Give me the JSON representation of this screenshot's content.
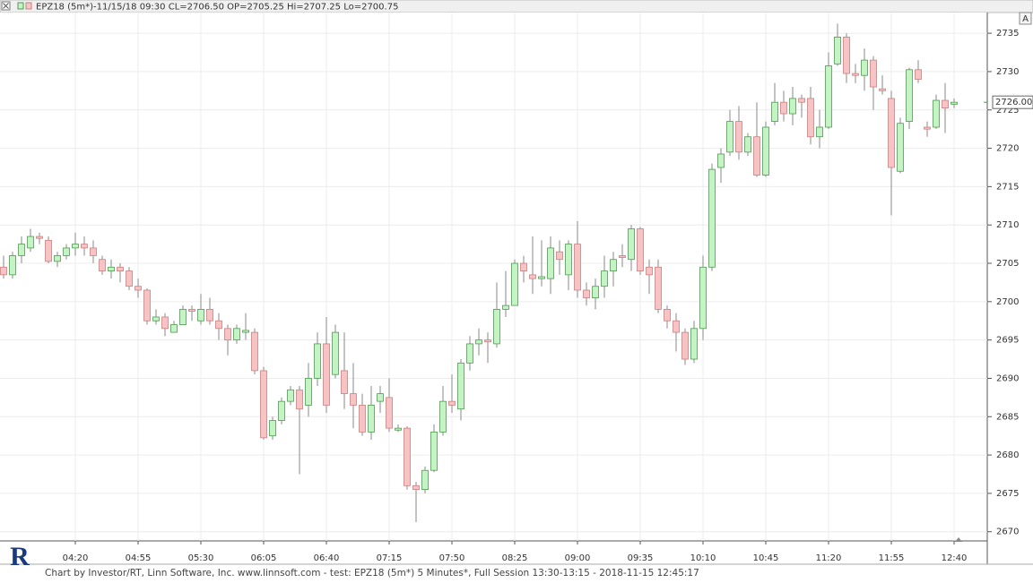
{
  "chart_data": {
    "type": "candlestick",
    "header": "EPZ18 (5m*)-11/15/18 09:30 CL=2706.50 OP=2705.25 Hi=2707.25 Lo=2700.75",
    "footer": "Chart by Investor/RT, Linn Software, Inc. www.linnsoft.com - test: EPZ18 (5m*) 5 Minutes*, Full Session 13:30-13:15 - 2018-11-15 12:45:17",
    "logo": "R",
    "button": "A",
    "categories": [
      null,
      null,
      null,
      null,
      null,
      null,
      null,
      null,
      "04:20",
      null,
      null,
      null,
      null,
      null,
      null,
      "04:55",
      null,
      null,
      null,
      null,
      null,
      null,
      "05:30",
      null,
      null,
      null,
      null,
      null,
      null,
      "06:05",
      null,
      null,
      null,
      null,
      null,
      null,
      "06:40",
      null,
      null,
      null,
      null,
      null,
      null,
      "07:15",
      null,
      null,
      null,
      null,
      null,
      null,
      "07:50",
      null,
      null,
      null,
      null,
      null,
      null,
      "08:25",
      null,
      null,
      null,
      null,
      null,
      null,
      "09:00",
      null,
      null,
      null,
      null,
      null,
      null,
      "09:35",
      null,
      null,
      null,
      null,
      null,
      null,
      "10:10",
      null,
      null,
      null,
      null,
      null,
      null,
      "10:45",
      null,
      null,
      null,
      null,
      null,
      null,
      "11:20",
      null,
      null,
      null,
      null,
      null,
      null,
      "11:55",
      null,
      null,
      null,
      null,
      null,
      null,
      "12:40"
    ],
    "open": [
      2704.5,
      2703.5,
      2706,
      2707,
      2708.5,
      2708,
      2705.25,
      2706,
      2707,
      2707.5,
      2707,
      2705.5,
      2704,
      2704.5,
      2704,
      2702,
      2701.5,
      2697.5,
      2698,
      2696,
      2697,
      2699,
      2697.5,
      2699,
      2697.5,
      2696.5,
      2695,
      2696,
      2696,
      2691,
      2682.5,
      2684.5,
      2687,
      2688.5,
      2686.5,
      2690,
      2694.5,
      2690.5,
      2691,
      2688,
      2686.5,
      2683,
      2687,
      2687.5,
      2683.25,
      2683.5,
      2676,
      2675.5,
      2678,
      2683,
      2687,
      2686,
      2692,
      2694.5,
      2695,
      2694.5,
      2699,
      2699.5,
      2705,
      2703.5,
      2703,
      2703,
      2706.5,
      2703.5,
      2707.5,
      2701.5,
      2700.5,
      2702,
      2704,
      2706,
      2705.5,
      2709.5,
      2704.5,
      2704.5,
      2699,
      2697.5,
      2696,
      2692.5,
      2696.5,
      2704.5,
      2717.5,
      2719.5,
      2723.5,
      2719.5,
      2721.5,
      2716.5,
      2723.5,
      2726,
      2724.5,
      2726.5,
      2726.5,
      2721.5,
      2722.75,
      2731,
      2734.5,
      2729.75,
      2729.5,
      2731.5,
      2727.75,
      2726.5,
      2717,
      2723.5,
      2730.25,
      2722.75,
      2722.75,
      2726.25,
      2725.75
    ],
    "high": [
      2706,
      2706.5,
      2708.5,
      2709.5,
      2709,
      2708.5,
      2706.5,
      2707.5,
      2709,
      2708.5,
      2708,
      2706,
      2705.5,
      2705,
      2704.5,
      2703,
      2701.75,
      2699,
      2698.5,
      2697.5,
      2699.5,
      2699.5,
      2701,
      2700.5,
      2698.5,
      2697,
      2697,
      2698.5,
      2696.5,
      2691.5,
      2685,
      2687.5,
      2689,
      2689,
      2692,
      2696,
      2698,
      2697,
      2696,
      2692,
      2688,
      2689,
      2689,
      2690,
      2684,
      2683.75,
      2676.5,
      2678.5,
      2684,
      2689,
      2690.5,
      2692.5,
      2695.5,
      2696.5,
      2696,
      2702.5,
      2704,
      2705.5,
      2706,
      2708.5,
      2708,
      2708.5,
      2708,
      2708,
      2710.5,
      2702.5,
      2703,
      2706,
      2706.5,
      2707.5,
      2710,
      2709.75,
      2705.5,
      2705.5,
      2699.5,
      2698.5,
      2696.5,
      2697.5,
      2706,
      2718,
      2720,
      2725,
      2725.5,
      2722,
      2726,
      2723.5,
      2728.5,
      2727.5,
      2728,
      2727,
      2728,
      2725,
      2732.5,
      2736.25,
      2735,
      2731,
      2733,
      2732,
      2729.5,
      2727.5,
      2724,
      2730.5,
      2731.5,
      2723.5,
      2727,
      2728.5,
      2726.5
    ],
    "low": [
      2703,
      2703,
      2705,
      2706.5,
      2707.5,
      2705,
      2704.5,
      2705.5,
      2706,
      2706,
      2705,
      2703.5,
      2703,
      2702.5,
      2701.5,
      2700.5,
      2697,
      2697,
      2695.5,
      2696,
      2697,
      2697.5,
      2697,
      2697,
      2695,
      2693,
      2694.5,
      2695,
      2690.5,
      2682,
      2682,
      2684,
      2686.5,
      2677.5,
      2685,
      2689,
      2685.5,
      2690,
      2686,
      2683.5,
      2682.5,
      2682,
      2685.5,
      2683,
      2683,
      2675.5,
      2671.25,
      2675,
      2677.75,
      2682.5,
      2685.5,
      2684.5,
      2691,
      2693,
      2692,
      2694,
      2698,
      2699.5,
      2702.5,
      2701,
      2702,
      2701,
      2703.5,
      2701.5,
      2700.5,
      2699.5,
      2699,
      2700.5,
      2702,
      2704.5,
      2704,
      2703.5,
      2701,
      2698.5,
      2696.5,
      2693.5,
      2691.75,
      2692,
      2695,
      2704,
      2715.5,
      2719,
      2718.5,
      2719,
      2716.25,
      2716.25,
      2723,
      2723.5,
      2723,
      2724,
      2720.5,
      2720,
      2722.5,
      2730.75,
      2728.5,
      2728.5,
      2727.5,
      2725,
      2727,
      2711.25,
      2716.75,
      2722.5,
      2728.5,
      2721.5,
      2722.5,
      2722,
      2725.25
    ],
    "close": [
      2703.5,
      2706,
      2707.5,
      2708.5,
      2708.25,
      2705.25,
      2706,
      2707,
      2707.5,
      2707,
      2706,
      2704,
      2704.5,
      2704,
      2702,
      2701.5,
      2697.5,
      2698,
      2696.5,
      2697,
      2699,
      2698.75,
      2699,
      2697.5,
      2696.5,
      2695,
      2696.5,
      2696.25,
      2691,
      2682.25,
      2684.5,
      2687,
      2688.5,
      2686,
      2690,
      2694.5,
      2686.5,
      2696,
      2688,
      2686.5,
      2683,
      2686.5,
      2688,
      2683.5,
      2683.5,
      2676,
      2675.5,
      2678,
      2683,
      2687,
      2686.5,
      2692,
      2694.5,
      2695,
      2694.75,
      2699,
      2699.5,
      2705,
      2704,
      2703,
      2703.25,
      2707,
      2705.5,
      2707.5,
      2701.5,
      2700.5,
      2702,
      2704,
      2705.5,
      2705.75,
      2709.5,
      2704,
      2703.5,
      2699,
      2697.5,
      2696,
      2692.5,
      2696.5,
      2704.5,
      2717.25,
      2719.25,
      2723.5,
      2719.5,
      2721.5,
      2716.5,
      2722.75,
      2726,
      2724.5,
      2726.5,
      2726,
      2721.5,
      2722.75,
      2730.75,
      2734.5,
      2729.75,
      2729.5,
      2731.5,
      2728,
      2727.5,
      2717.5,
      2723.25,
      2730.25,
      2729,
      2722.5,
      2726.25,
      2725.25,
      2726
    ],
    "up_color": "#c6f3c6",
    "up_edge": "#4f9a4f",
    "down_color": "#f6c4c4",
    "down_edge": "#c98080",
    "last_price": {
      "value": 2726,
      "label": "2726.00"
    },
    "ylim": [
      2668.8,
      2737.7
    ],
    "yticks": [
      2670,
      2675,
      2680,
      2685,
      2690,
      2695,
      2700,
      2705,
      2710,
      2715,
      2720,
      2725,
      2730,
      2735
    ],
    "grid": true
  }
}
